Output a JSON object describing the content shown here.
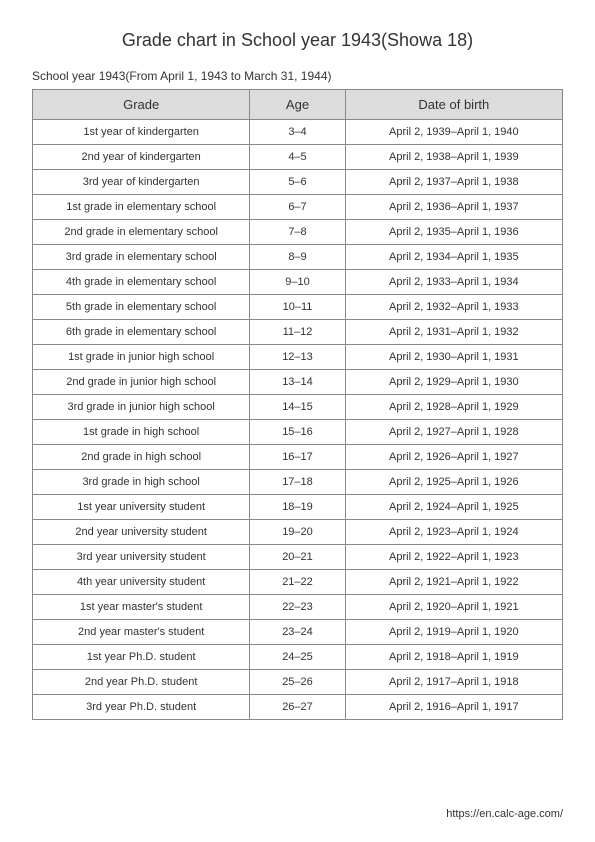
{
  "title": "Grade chart in School year 1943(Showa 18)",
  "subtitle": "School year 1943(From April 1, 1943 to March 31, 1944)",
  "table": {
    "columns": [
      "Grade",
      "Age",
      "Date of birth"
    ],
    "rows": [
      [
        "1st year of kindergarten",
        "3–4",
        "April 2, 1939–April 1, 1940"
      ],
      [
        "2nd year of kindergarten",
        "4–5",
        "April 2, 1938–April 1, 1939"
      ],
      [
        "3rd year of kindergarten",
        "5–6",
        "April 2, 1937–April 1, 1938"
      ],
      [
        "1st grade in elementary school",
        "6–7",
        "April 2, 1936–April 1, 1937"
      ],
      [
        "2nd grade in elementary school",
        "7–8",
        "April 2, 1935–April 1, 1936"
      ],
      [
        "3rd grade in elementary school",
        "8–9",
        "April 2, 1934–April 1, 1935"
      ],
      [
        "4th grade in elementary school",
        "9–10",
        "April 2, 1933–April 1, 1934"
      ],
      [
        "5th grade in elementary school",
        "10–11",
        "April 2, 1932–April 1, 1933"
      ],
      [
        "6th grade in elementary school",
        "11–12",
        "April 2, 1931–April 1, 1932"
      ],
      [
        "1st grade in junior high school",
        "12–13",
        "April 2, 1930–April 1, 1931"
      ],
      [
        "2nd grade in junior high school",
        "13–14",
        "April 2, 1929–April 1, 1930"
      ],
      [
        "3rd grade in junior high school",
        "14–15",
        "April 2, 1928–April 1, 1929"
      ],
      [
        "1st grade in high school",
        "15–16",
        "April 2, 1927–April 1, 1928"
      ],
      [
        "2nd grade in high school",
        "16–17",
        "April 2, 1926–April 1, 1927"
      ],
      [
        "3rd grade in high school",
        "17–18",
        "April 2, 1925–April 1, 1926"
      ],
      [
        "1st year university student",
        "18–19",
        "April 2, 1924–April 1, 1925"
      ],
      [
        "2nd year university student",
        "19–20",
        "April 2, 1923–April 1, 1924"
      ],
      [
        "3rd year university student",
        "20–21",
        "April 2, 1922–April 1, 1923"
      ],
      [
        "4th year university student",
        "21–22",
        "April 2, 1921–April 1, 1922"
      ],
      [
        "1st year master's student",
        "22–23",
        "April 2, 1920–April 1, 1921"
      ],
      [
        "2nd year master's student",
        "23–24",
        "April 2, 1919–April 1, 1920"
      ],
      [
        "1st year Ph.D. student",
        "24–25",
        "April 2, 1918–April 1, 1919"
      ],
      [
        "2nd year Ph.D. student",
        "25–26",
        "April 2, 1917–April 1, 1918"
      ],
      [
        "3rd year Ph.D. student",
        "26–27",
        "April 2, 1916–April 1, 1917"
      ]
    ]
  },
  "footer": "https://en.calc-age.com/"
}
